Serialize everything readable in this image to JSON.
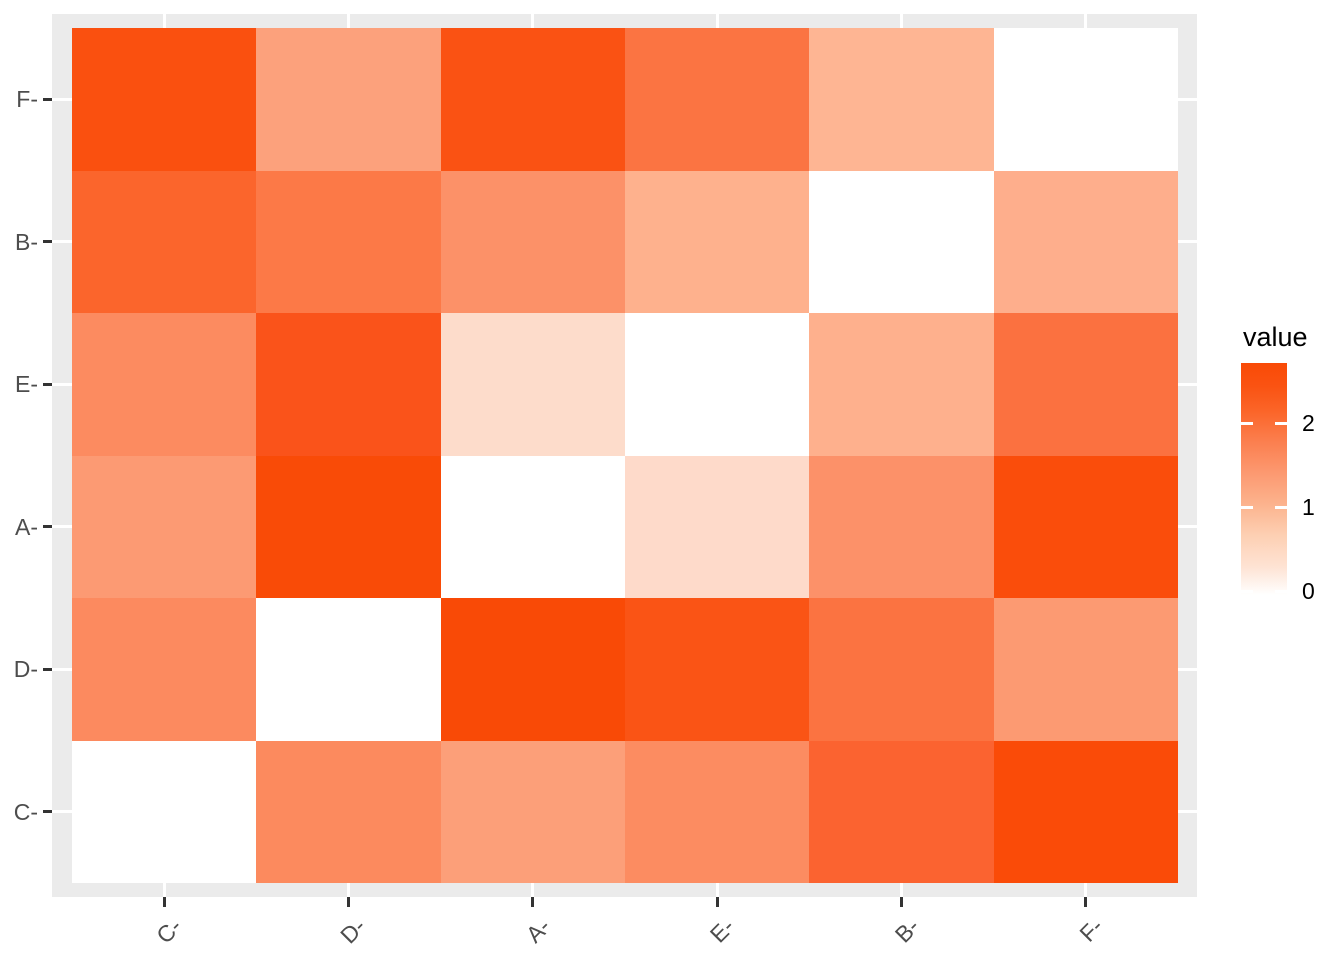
{
  "chart_data": {
    "type": "heatmap",
    "title": "",
    "x_categories": [
      "C-",
      "D-",
      "A-",
      "E-",
      "B-",
      "F-"
    ],
    "y_categories": [
      "F-",
      "B-",
      "E-",
      "A-",
      "D-",
      "C-"
    ],
    "x_axis_label_angle": 45,
    "grid": false,
    "panel_background": "#EBEBEB",
    "gridline_color": "#FFFFFF",
    "axis_text_color": "#4D4D4D",
    "tick_color": "#333333",
    "legend": {
      "title": "value",
      "position": "right",
      "tick_labels": [
        "2",
        "1",
        "0"
      ],
      "tick_values": [
        2,
        1,
        0
      ],
      "range": [
        0,
        2.75
      ],
      "low_color": "#FFFFFF",
      "high_color": "#F94A06"
    },
    "values": [
      [
        2.5,
        1.25,
        2.45,
        1.9,
        1.0,
        0
      ],
      [
        2.1,
        1.8,
        1.5,
        1.05,
        0,
        1.1
      ],
      [
        1.6,
        2.4,
        0.45,
        0,
        1.05,
        1.9
      ],
      [
        1.35,
        2.7,
        0,
        0.45,
        1.5,
        2.6
      ],
      [
        1.6,
        0,
        2.7,
        2.45,
        1.9,
        1.35
      ],
      [
        0,
        1.6,
        1.3,
        1.6,
        2.1,
        2.6
      ]
    ],
    "cell_colors": [
      [
        "#FA500F",
        "#FCA17C",
        "#FA5213",
        "#FB7442",
        "#FEB593",
        "#FFFFFF"
      ],
      [
        "#FB652C",
        "#FC7947",
        "#FC9168",
        "#FEB18D",
        "#FFFFFF",
        "#FEAE8C"
      ],
      [
        "#FC8B60",
        "#FA531A",
        "#FDDCCB",
        "#FFFFFF",
        "#FEB08D",
        "#FB7140"
      ],
      [
        "#FC9A73",
        "#F94B07",
        "#FFFFFF",
        "#FEDACA",
        "#FC9169",
        "#FA4D0B"
      ],
      [
        "#FC8A5F",
        "#FFFFFF",
        "#F94A06",
        "#FA5415",
        "#FB7341",
        "#FC9A72"
      ],
      [
        "#FFFFFF",
        "#FC8A5E",
        "#FC9F79",
        "#FC8C61",
        "#FB6330",
        "#FA4B08"
      ]
    ]
  }
}
